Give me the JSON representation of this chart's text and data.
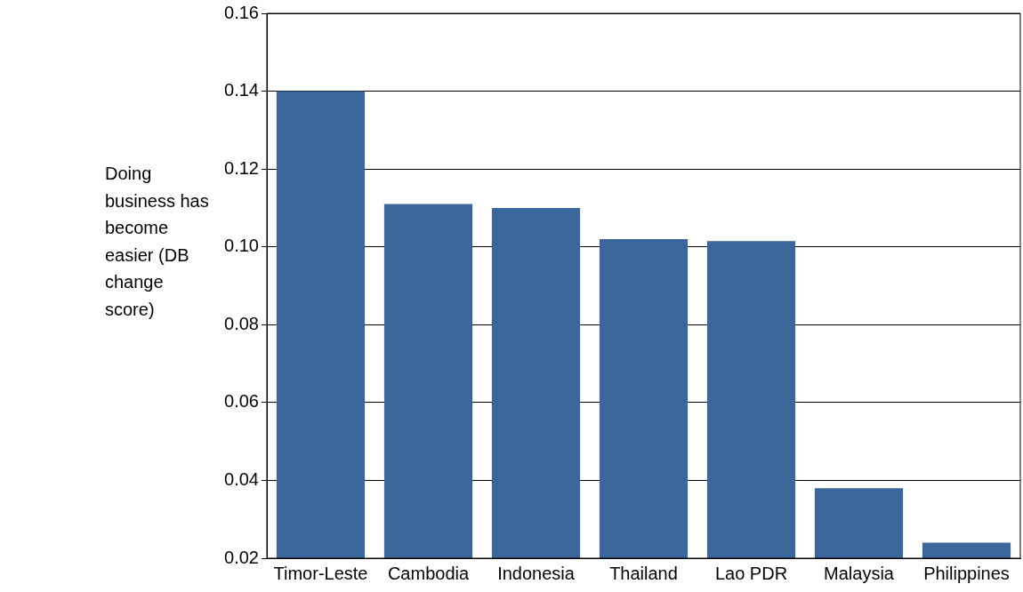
{
  "chart_data": {
    "type": "bar",
    "ylabel": "Doing business has become easier (DB change score)",
    "categories": [
      "Timor-Leste",
      "Cambodia",
      "Indonesia",
      "Thailand",
      "Lao PDR",
      "Malaysia",
      "Philippines"
    ],
    "values": [
      0.14,
      0.111,
      0.11,
      0.102,
      0.1015,
      0.038,
      0.024
    ],
    "color": "#3a6699",
    "ylim": [
      0.02,
      0.16
    ],
    "yticks": [
      0.02,
      0.04,
      0.06,
      0.08,
      {
        "value": 0.1,
        "label": "0.10"
      },
      0.12,
      0.14,
      0.16
    ],
    "grid": "y",
    "legend": false
  }
}
